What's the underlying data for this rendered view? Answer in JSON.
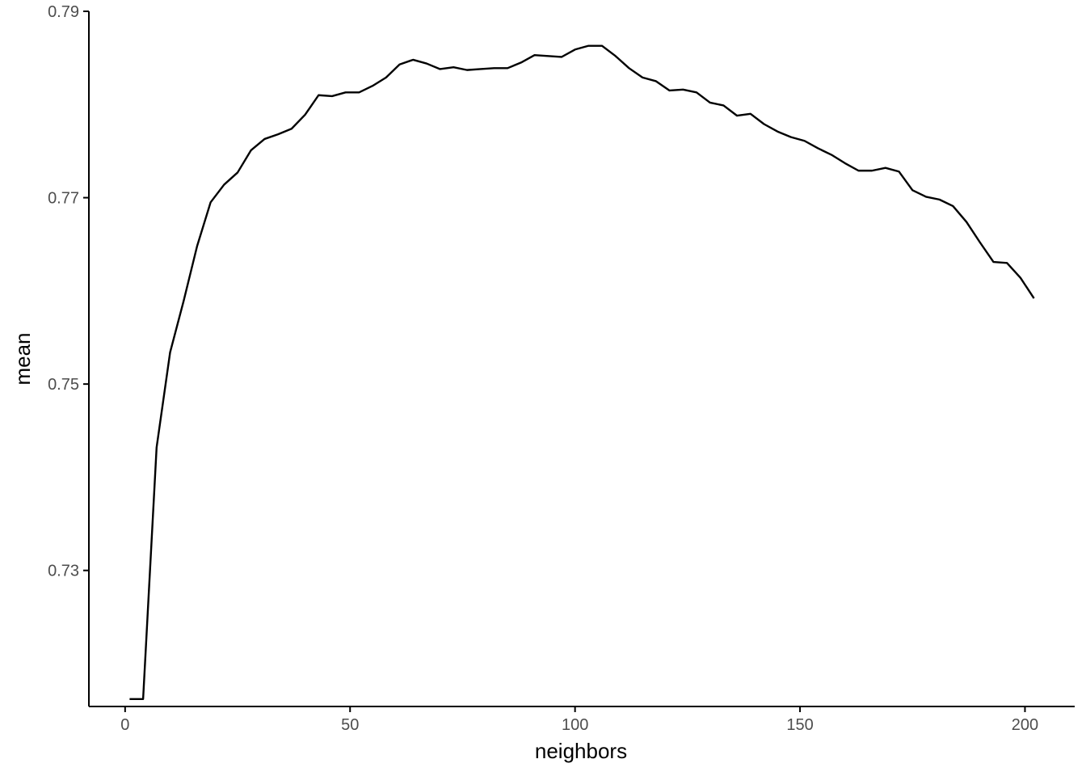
{
  "chart_data": {
    "type": "line",
    "title": "",
    "xlabel": "neighbors",
    "ylabel": "mean",
    "xlim": [
      -8.05,
      211.05
    ],
    "ylim": [
      0.7154,
      0.79
    ],
    "xticks": [
      0,
      50,
      100,
      150,
      200
    ],
    "xtick_labels": [
      "0",
      "50",
      "100",
      "150",
      "200"
    ],
    "yticks": [
      0.73,
      0.75,
      0.77,
      0.79
    ],
    "ytick_labels": [
      "0.73",
      "0.75",
      "0.77",
      "0.79"
    ],
    "grid": false,
    "line_color": "#000000",
    "series": [
      {
        "x": [
          1,
          4,
          7,
          10,
          13,
          16,
          19,
          22,
          25,
          28,
          31,
          34,
          37,
          40,
          43,
          46,
          49,
          52,
          55,
          58,
          61,
          64,
          67,
          70,
          73,
          76,
          79,
          82,
          85,
          88,
          91,
          94,
          97,
          100,
          103,
          106,
          109,
          112,
          115,
          118,
          121,
          124,
          127,
          130,
          133,
          136,
          139,
          142,
          145,
          148,
          151,
          154,
          157,
          160,
          163,
          166,
          169,
          172,
          175,
          178,
          181,
          184,
          187,
          190,
          193,
          196,
          199,
          202
        ],
        "y": [
          0.7162,
          0.7162,
          0.7432,
          0.7534,
          0.7589,
          0.7648,
          0.7695,
          0.7714,
          0.7727,
          0.7751,
          0.7763,
          0.7768,
          0.7774,
          0.7789,
          0.781,
          0.7809,
          0.7813,
          0.7813,
          0.782,
          0.7829,
          0.7843,
          0.7848,
          0.7844,
          0.7838,
          0.784,
          0.7837,
          0.7838,
          0.7839,
          0.7839,
          0.7845,
          0.7853,
          0.7852,
          0.7851,
          0.7859,
          0.7863,
          0.7863,
          0.7852,
          0.7839,
          0.7829,
          0.7825,
          0.7815,
          0.7816,
          0.7813,
          0.7802,
          0.7799,
          0.7788,
          0.779,
          0.7779,
          0.7771,
          0.7765,
          0.7761,
          0.7753,
          0.7746,
          0.7737,
          0.7729,
          0.7729,
          0.7732,
          0.7728,
          0.7708,
          0.7701,
          0.7698,
          0.7691,
          0.7674,
          0.7652,
          0.7631,
          0.763,
          0.7614,
          0.7592
        ]
      }
    ]
  }
}
